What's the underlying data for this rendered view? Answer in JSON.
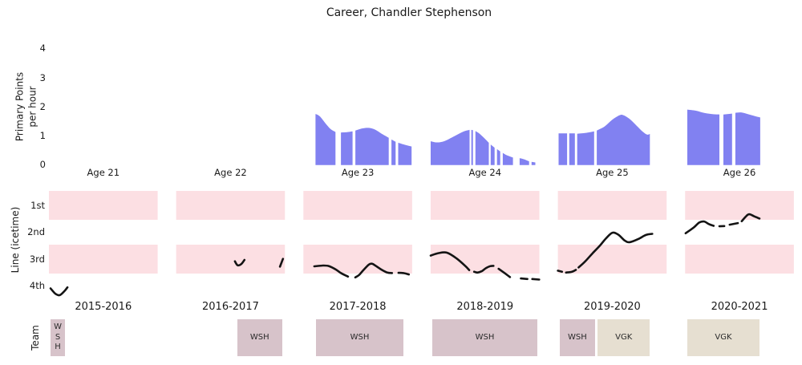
{
  "title": "Career, Chandler Stephenson",
  "chart_data": [
    {
      "type": "area",
      "panel": "primary-points",
      "ylabel_lines": [
        "Primary Points",
        "per hour"
      ],
      "yticks": [
        0,
        1,
        2,
        3,
        4
      ],
      "ylim": [
        0,
        4
      ],
      "grid": false,
      "fill_color": "#8181f1",
      "facets": [
        {
          "label": "Age 21",
          "segments": []
        },
        {
          "label": "Age 22",
          "segments": []
        },
        {
          "label": "Age 23",
          "segments": [
            [
              [
                0.111,
                1.76
              ],
              [
                0.15,
                1.68
              ],
              [
                0.2,
                1.45
              ],
              [
                0.25,
                1.24
              ],
              [
                0.295,
                1.14
              ]
            ],
            [
              [
                0.345,
                1.12
              ],
              [
                0.4,
                1.13
              ],
              [
                0.452,
                1.16
              ]
            ],
            [
              [
                0.478,
                1.19
              ],
              [
                0.54,
                1.26
              ],
              [
                0.6,
                1.28
              ],
              [
                0.66,
                1.22
              ],
              [
                0.72,
                1.08
              ],
              [
                0.785,
                0.94
              ]
            ],
            [
              [
                0.81,
                0.88
              ],
              [
                0.848,
                0.8
              ]
            ],
            [
              [
                0.872,
                0.77
              ],
              [
                0.93,
                0.7
              ],
              [
                0.995,
                0.64
              ]
            ]
          ]
        },
        {
          "label": "Age 24",
          "segments": [
            [
              [
                0.0,
                0.82
              ],
              [
                0.06,
                0.78
              ],
              [
                0.13,
                0.83
              ],
              [
                0.22,
                1.0
              ],
              [
                0.3,
                1.15
              ],
              [
                0.358,
                1.21
              ]
            ],
            [
              [
                0.374,
                1.21
              ],
              [
                0.389,
                1.2
              ]
            ],
            [
              [
                0.412,
                1.17
              ],
              [
                0.45,
                1.08
              ],
              [
                0.49,
                0.94
              ],
              [
                0.535,
                0.77
              ]
            ],
            [
              [
                0.552,
                0.71
              ],
              [
                0.588,
                0.6
              ]
            ],
            [
              [
                0.61,
                0.55
              ],
              [
                0.64,
                0.47
              ]
            ],
            [
              [
                0.663,
                0.42
              ],
              [
                0.7,
                0.34
              ],
              [
                0.757,
                0.26
              ]
            ],
            [
              [
                0.818,
                0.24
              ],
              [
                0.86,
                0.2
              ],
              [
                0.905,
                0.13
              ]
            ],
            [
              [
                0.928,
                0.11
              ],
              [
                0.963,
                0.09
              ]
            ]
          ]
        },
        {
          "label": "Age 25",
          "segments": [
            [
              [
                0.007,
                1.09
              ],
              [
                0.085,
                1.09
              ]
            ],
            [
              [
                0.105,
                1.09
              ],
              [
                0.156,
                1.09
              ]
            ],
            [
              [
                0.178,
                1.08
              ],
              [
                0.26,
                1.11
              ],
              [
                0.333,
                1.16
              ]
            ],
            [
              [
                0.358,
                1.19
              ],
              [
                0.43,
                1.33
              ],
              [
                0.5,
                1.56
              ],
              [
                0.565,
                1.71
              ],
              [
                0.6,
                1.72
              ],
              [
                0.655,
                1.6
              ],
              [
                0.72,
                1.37
              ],
              [
                0.78,
                1.15
              ],
              [
                0.82,
                1.05
              ],
              [
                0.846,
                1.07
              ]
            ]
          ]
        },
        {
          "label": "Age 26",
          "segments": [
            [
              [
                0.02,
                1.91
              ],
              [
                0.1,
                1.87
              ],
              [
                0.18,
                1.79
              ],
              [
                0.26,
                1.75
              ],
              [
                0.315,
                1.74
              ]
            ],
            [
              [
                0.352,
                1.74
              ],
              [
                0.432,
                1.77
              ]
            ],
            [
              [
                0.462,
                1.8
              ],
              [
                0.52,
                1.81
              ],
              [
                0.58,
                1.75
              ],
              [
                0.645,
                1.68
              ],
              [
                0.691,
                1.64
              ]
            ]
          ]
        }
      ]
    },
    {
      "type": "line",
      "panel": "line-icetime",
      "ylabel": "Line (icetime)",
      "yticklabels": [
        "1st",
        "2nd",
        "3rd",
        "4th"
      ],
      "banded_rows": [
        "1st",
        "3rd"
      ],
      "band_color": "#fcdfe3",
      "line_color": "#141414",
      "facets": [
        {
          "label": "2015-2016",
          "segments": [
            [
              [
                0.015,
                4.09
              ],
              [
                0.06,
                4.29
              ],
              [
                0.1,
                4.34
              ],
              [
                0.145,
                4.18
              ],
              [
                0.17,
                4.05
              ]
            ]
          ]
        },
        {
          "label": "2016-2017",
          "segments": [
            [
              [
                0.54,
                3.08
              ],
              [
                0.565,
                3.23
              ],
              [
                0.6,
                3.18
              ],
              [
                0.628,
                3.03
              ]
            ],
            [
              [
                0.955,
                3.28
              ],
              [
                0.982,
                2.99
              ]
            ]
          ]
        },
        {
          "label": "2017-2018",
          "segments": [
            [
              [
                0.1,
                3.27
              ],
              [
                0.18,
                3.24
              ],
              [
                0.235,
                3.26
              ],
              [
                0.3,
                3.39
              ],
              [
                0.345,
                3.52
              ],
              [
                0.41,
                3.65
              ]
            ],
            [
              [
                0.477,
                3.68
              ],
              [
                0.512,
                3.59
              ],
              [
                0.545,
                3.44
              ],
              [
                0.6,
                3.21
              ],
              [
                0.628,
                3.17
              ],
              [
                0.65,
                3.21
              ],
              [
                0.713,
                3.38
              ],
              [
                0.772,
                3.5
              ],
              [
                0.815,
                3.52
              ]
            ],
            [
              [
                0.875,
                3.51
              ],
              [
                0.92,
                3.52
              ],
              [
                0.97,
                3.57
              ]
            ]
          ]
        },
        {
          "label": "2018-2019",
          "segments": [
            [
              [
                0.0,
                2.87
              ],
              [
                0.07,
                2.78
              ],
              [
                0.15,
                2.76
              ],
              [
                0.24,
                2.98
              ],
              [
                0.32,
                3.26
              ],
              [
                0.355,
                3.41
              ]
            ],
            [
              [
                0.4,
                3.47
              ],
              [
                0.43,
                3.5
              ],
              [
                0.47,
                3.45
              ],
              [
                0.51,
                3.33
              ],
              [
                0.55,
                3.26
              ],
              [
                0.578,
                3.25
              ]
            ],
            [
              [
                0.625,
                3.36
              ],
              [
                0.68,
                3.52
              ],
              [
                0.73,
                3.67
              ]
            ],
            [
              [
                0.83,
                3.72
              ],
              [
                0.89,
                3.74
              ]
            ],
            [
              [
                0.935,
                3.74
              ],
              [
                0.998,
                3.76
              ]
            ]
          ]
        },
        {
          "label": "2019-2020",
          "segments": [
            [
              [
                0.0,
                3.43
              ],
              [
                0.038,
                3.47
              ]
            ],
            [
              [
                0.075,
                3.5
              ],
              [
                0.13,
                3.47
              ],
              [
                0.165,
                3.4
              ]
            ],
            [
              [
                0.19,
                3.31
              ],
              [
                0.25,
                3.09
              ],
              [
                0.32,
                2.78
              ],
              [
                0.39,
                2.48
              ],
              [
                0.44,
                2.24
              ],
              [
                0.5,
                2.02
              ],
              [
                0.555,
                2.09
              ],
              [
                0.615,
                2.31
              ],
              [
                0.66,
                2.37
              ],
              [
                0.74,
                2.25
              ],
              [
                0.81,
                2.1
              ],
              [
                0.868,
                2.06
              ]
            ]
          ]
        },
        {
          "label": "2020-2021",
          "segments": [
            [
              [
                0.005,
                2.04
              ],
              [
                0.08,
                1.82
              ],
              [
                0.13,
                1.64
              ],
              [
                0.175,
                1.6
              ],
              [
                0.22,
                1.7
              ],
              [
                0.262,
                1.76
              ]
            ],
            [
              [
                0.315,
                1.78
              ],
              [
                0.36,
                1.77
              ]
            ],
            [
              [
                0.41,
                1.72
              ],
              [
                0.485,
                1.66
              ]
            ],
            [
              [
                0.52,
                1.59
              ],
              [
                0.555,
                1.43
              ],
              [
                0.588,
                1.33
              ],
              [
                0.632,
                1.4
              ],
              [
                0.684,
                1.49
              ]
            ]
          ]
        }
      ]
    },
    {
      "type": "team-timeline",
      "panel": "team",
      "ylabel": "Team",
      "team_colors": {
        "WSH": "#d7c3ca",
        "VGK": "#e6dfd1"
      },
      "facets": [
        {
          "boxes": [
            {
              "team": "WSH",
              "start": 0.015,
              "end": 0.148,
              "stacked": true
            }
          ]
        },
        {
          "boxes": [
            {
              "team": "WSH",
              "start": 0.563,
              "end": 0.973,
              "stacked": false
            }
          ]
        },
        {
          "boxes": [
            {
              "team": "WSH",
              "start": 0.116,
              "end": 0.92,
              "stacked": false
            }
          ]
        },
        {
          "boxes": [
            {
              "team": "WSH",
              "start": 0.015,
              "end": 0.981,
              "stacked": false
            }
          ]
        },
        {
          "boxes": [
            {
              "team": "WSH",
              "start": 0.017,
              "end": 0.342,
              "stacked": false
            },
            {
              "team": "VGK",
              "start": 0.364,
              "end": 0.847,
              "stacked": false
            }
          ]
        },
        {
          "boxes": [
            {
              "team": "VGK",
              "start": 0.02,
              "end": 0.684,
              "stacked": false
            }
          ]
        }
      ]
    }
  ]
}
